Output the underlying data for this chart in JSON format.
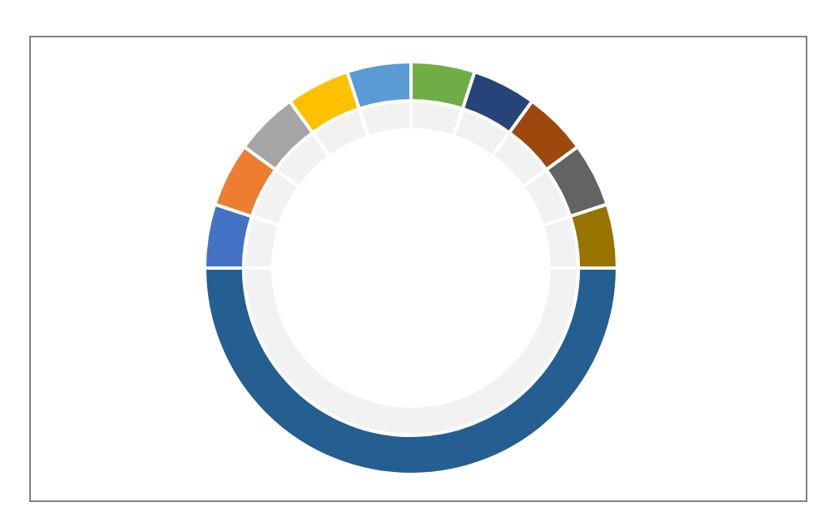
{
  "chart_data": {
    "type": "donut",
    "categories": [
      null,
      null,
      null,
      null,
      null,
      null,
      null,
      null,
      null,
      null,
      null
    ],
    "series": [
      {
        "values": [
          5,
          5,
          5,
          5,
          5,
          5,
          5,
          5,
          5,
          5,
          50
        ],
        "color": "#f2f2f2"
      },
      {
        "values": [
          5,
          5,
          5,
          5,
          5,
          5,
          5,
          5,
          5,
          5,
          50
        ],
        "colors": [
          "#4472c4",
          "#ed7d31",
          "#a5a5a5",
          "#ffc000",
          "#5b9bd5",
          "#70ad47",
          "#264478",
          "#9e480e",
          "#636363",
          "#997300",
          "#255e91"
        ]
      }
    ],
    "legend": false
  }
}
